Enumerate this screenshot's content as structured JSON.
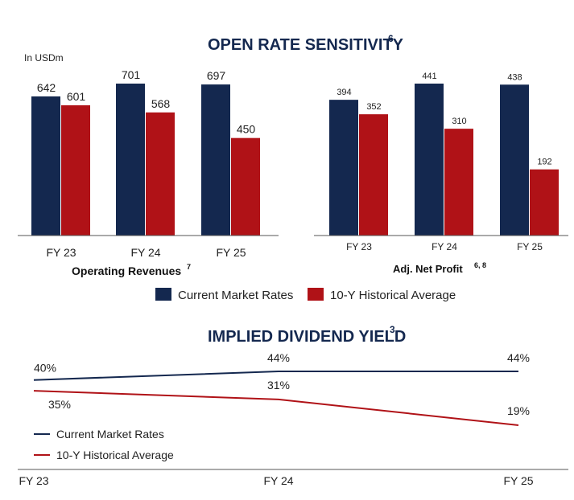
{
  "colors": {
    "current": "#14284f",
    "historical": "#b01217",
    "axis": "#555555"
  },
  "open_rate_title": "OPEN RATE SENSITIVITY",
  "open_rate_sup": "6",
  "dividend_title": "IMPLIED DIVIDEND YIELD",
  "dividend_sup": "3",
  "unit_label": "In USDm",
  "legend": {
    "current": "Current Market Rates",
    "historical": "10-Y Historical Average"
  },
  "chart_data": [
    {
      "type": "bar",
      "title": "Operating Revenues",
      "title_sup": "7",
      "ylabel": "In USDm",
      "categories": [
        "FY 23",
        "FY 24",
        "FY 25"
      ],
      "series": [
        {
          "name": "Current Market Rates",
          "values": [
            642,
            701,
            697
          ]
        },
        {
          "name": "10-Y Historical Average",
          "values": [
            601,
            568,
            450
          ]
        }
      ],
      "ylim": [
        0,
        701
      ]
    },
    {
      "type": "bar",
      "title": "Adj. Net Profit",
      "title_sup": "6, 8",
      "categories": [
        "FY 23",
        "FY 24",
        "FY 25"
      ],
      "series": [
        {
          "name": "Current Market Rates",
          "values": [
            394,
            441,
            438
          ]
        },
        {
          "name": "10-Y Historical Average",
          "values": [
            352,
            310,
            192
          ]
        }
      ],
      "ylim": [
        0,
        441
      ]
    },
    {
      "type": "line",
      "title": "IMPLIED DIVIDEND YIELD",
      "categories": [
        "FY 23",
        "FY 24",
        "FY 25"
      ],
      "series": [
        {
          "name": "Current Market Rates",
          "values": [
            40,
            44,
            44
          ],
          "labels": [
            "40%",
            "44%",
            "44%"
          ]
        },
        {
          "name": "10-Y Historical Average",
          "values": [
            35,
            31,
            19
          ],
          "labels": [
            "35%",
            "31%",
            "19%"
          ]
        }
      ]
    }
  ]
}
